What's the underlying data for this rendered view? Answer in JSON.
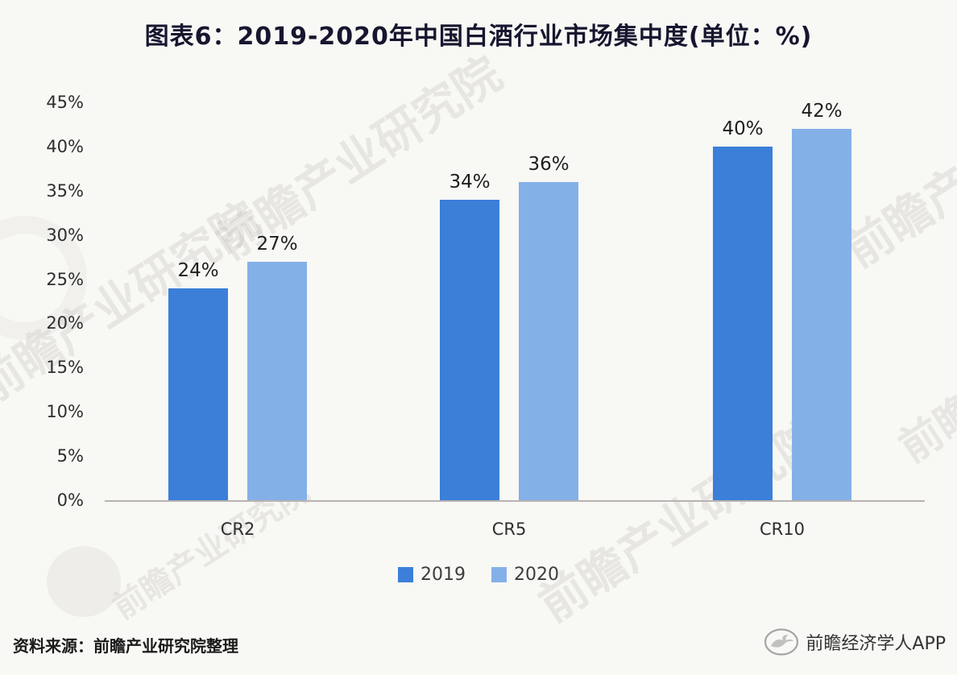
{
  "title": "图表6：2019-2020年中国白酒行业市场集中度(单位：%)",
  "chart_data": {
    "type": "bar",
    "title": "图表6：2019-2020年中国白酒行业市场集中度(单位：%)",
    "categories": [
      "CR2",
      "CR5",
      "CR10"
    ],
    "series": [
      {
        "name": "2019",
        "color": "#3b7fd9",
        "values": [
          24,
          34,
          40
        ]
      },
      {
        "name": "2020",
        "color": "#84b0e8",
        "values": [
          27,
          36,
          42
        ]
      }
    ],
    "unit": "%",
    "ylim": [
      0,
      45
    ],
    "ytick_step": 5,
    "ytick_labels": [
      "0%",
      "5%",
      "10%",
      "15%",
      "20%",
      "25%",
      "30%",
      "35%",
      "40%",
      "45%"
    ],
    "value_labels": [
      [
        "24%",
        "34%",
        "40%"
      ],
      [
        "27%",
        "36%",
        "42%"
      ]
    ],
    "xlabel": "",
    "ylabel": "",
    "grid": false,
    "legend_position": "bottom"
  },
  "legend": {
    "items": [
      "2019",
      "2020"
    ]
  },
  "footer": {
    "source": "资料来源：前瞻产业研究院整理",
    "brand": "前瞻经济学人APP"
  },
  "watermark": {
    "text": "前瞻产业研究院"
  },
  "colors": {
    "series_2019": "#3b7fd9",
    "series_2020": "#84b0e8",
    "background": "#f8f8f5",
    "axis_line": "#b9b3b1",
    "title_text": "#16162f"
  }
}
